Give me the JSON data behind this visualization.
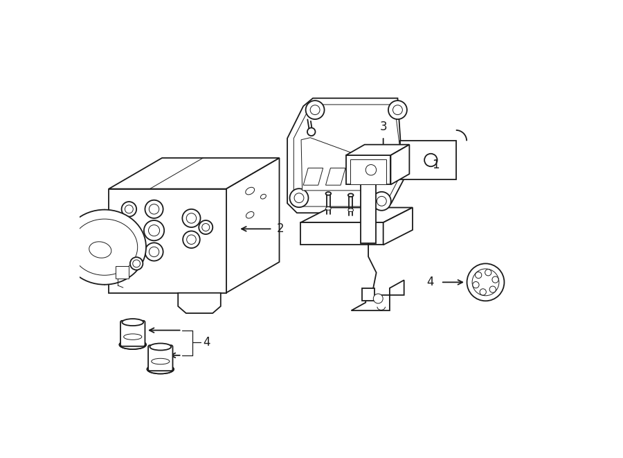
{
  "background_color": "#ffffff",
  "line_color": "#1a1a1a",
  "lw": 1.3,
  "tlw": 0.7,
  "label_fontsize": 12,
  "figsize": [
    9.0,
    6.61
  ],
  "dpi": 100
}
